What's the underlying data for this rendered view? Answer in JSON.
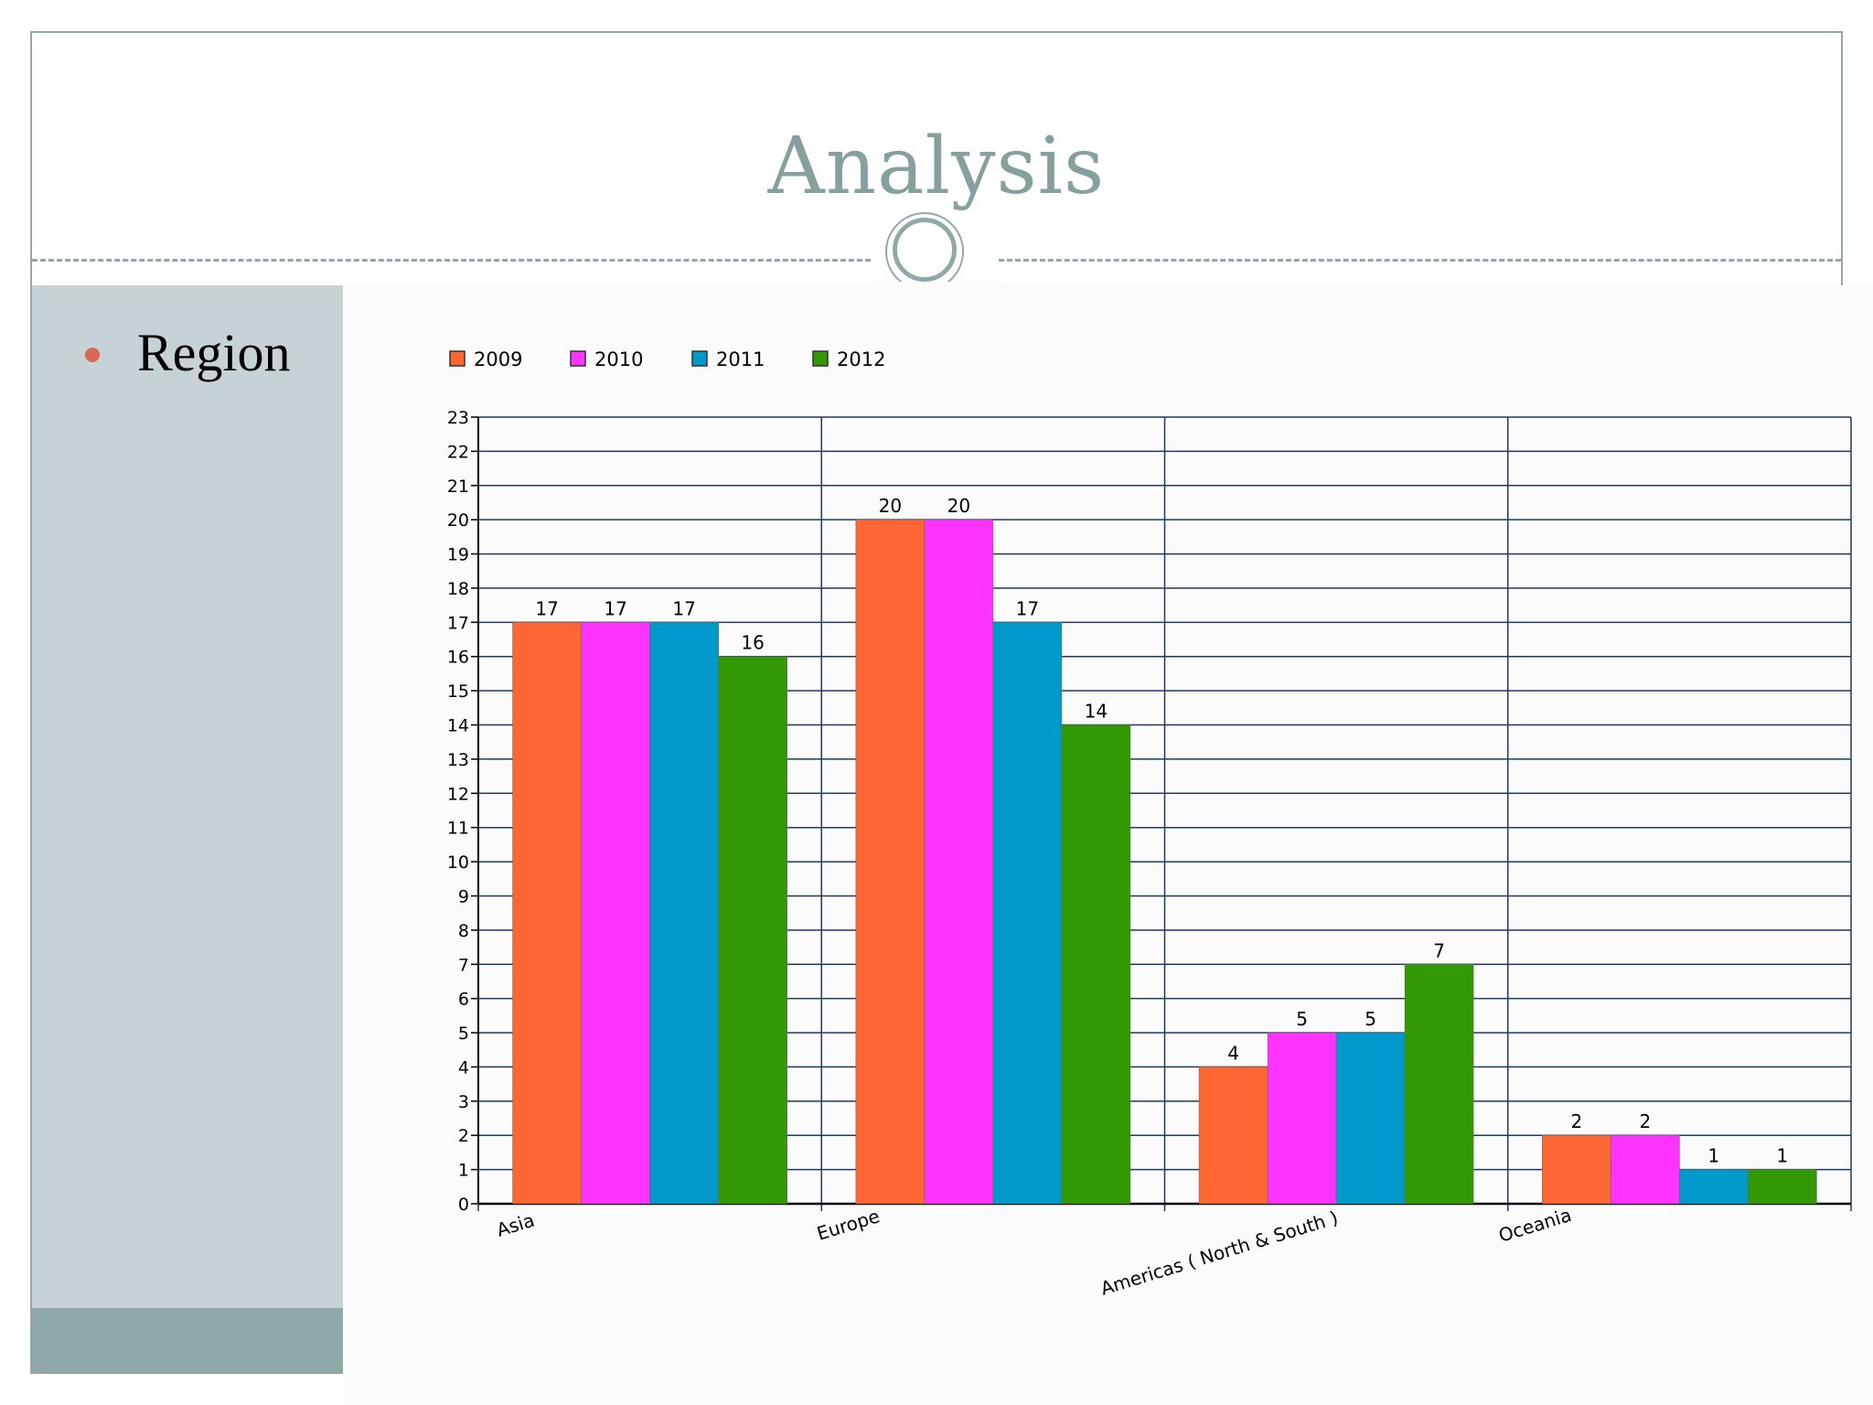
{
  "slide": {
    "title": "Analysis",
    "bullet_text": "Region"
  },
  "colors": {
    "accent": "#8fa9a9",
    "sidebar": "#c6d2d6",
    "bullet": "#d56a55",
    "title": "#86a09f"
  },
  "chart_data": {
    "type": "bar",
    "categories": [
      "Asia",
      "Europe",
      "Americas ( North & South )",
      "Oceania"
    ],
    "series": [
      {
        "name": "2009",
        "color": "#ff6633",
        "values": [
          17,
          20,
          4,
          2
        ]
      },
      {
        "name": "2010",
        "color": "#ff33ff",
        "values": [
          17,
          20,
          5,
          2
        ]
      },
      {
        "name": "2011",
        "color": "#0099cc",
        "values": [
          17,
          17,
          5,
          1
        ]
      },
      {
        "name": "2012",
        "color": "#339900",
        "values": [
          16,
          14,
          7,
          1
        ]
      }
    ],
    "ylim": [
      0,
      23
    ],
    "ytick_step": 1,
    "grid": true,
    "legend": "top-left",
    "data_labels": true,
    "xlabel": "",
    "ylabel": ""
  }
}
